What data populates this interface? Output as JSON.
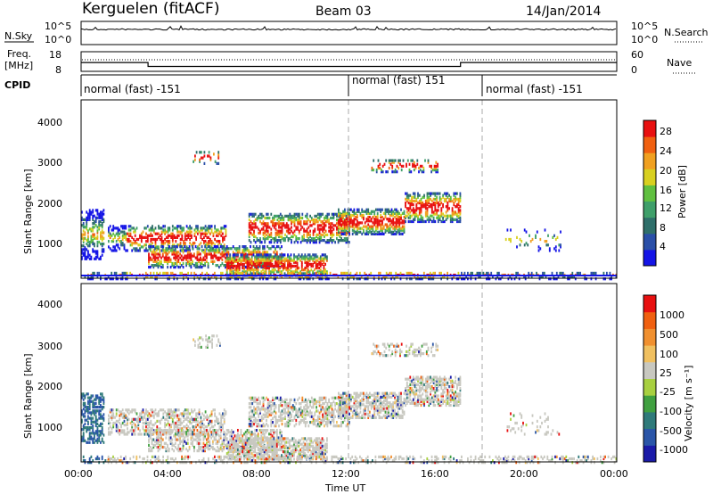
{
  "header": {
    "title": "Kerguelen (fitACF)",
    "beam": "Beam 03",
    "date": "14/Jan/2014"
  },
  "nsky": {
    "label": "N.Sky",
    "left_ticks": [
      "10^5",
      "10^0"
    ],
    "right_label": "N.Search",
    "right_ticks": [
      "10^5",
      "10^0"
    ]
  },
  "freq": {
    "label_line1": "Freq.",
    "label_line2": "[MHz]",
    "left_ticks": [
      "18",
      "8"
    ],
    "right_label": "Nave",
    "right_ticks": [
      "60",
      "0"
    ],
    "step_points": [
      [
        0,
        12.5
      ],
      [
        3,
        12.5
      ],
      [
        3,
        10.5
      ],
      [
        17,
        10.5
      ],
      [
        17,
        12.5
      ],
      [
        24,
        12.5
      ]
    ]
  },
  "cpid": {
    "label": "CPID",
    "segments": [
      {
        "start": 0,
        "end": 12,
        "label": "normal (fast) -151"
      },
      {
        "start": 12,
        "end": 18,
        "label": "normal (fast) 151"
      },
      {
        "start": 18,
        "end": 24,
        "label": "normal (fast) -151"
      }
    ]
  },
  "power_panel": {
    "ylabel": "Slant Range [km]",
    "yticks": [
      "4000",
      "3000",
      "2000",
      "1000"
    ],
    "colorbar_label": "Power [dB]",
    "colorbar_ticks": [
      "28",
      "24",
      "20",
      "16",
      "12",
      "8",
      "4"
    ],
    "colors": [
      "#1414e6",
      "#2a4fa8",
      "#2f6f6a",
      "#3f9f6a",
      "#60c040",
      "#d8d020",
      "#f0a020",
      "#f06010",
      "#e81010"
    ]
  },
  "velocity_panel": {
    "ylabel": "Slant Range [km]",
    "yticks": [
      "4000",
      "3000",
      "2000",
      "1000"
    ],
    "colorbar_label": "Velocity [m s⁻¹]",
    "colorbar_ticks": [
      "1000",
      "500",
      "100",
      "25",
      "-25",
      "-100",
      "-500",
      "-1000"
    ],
    "colors": [
      "#1a1aa8",
      "#2a55a8",
      "#2f7a7a",
      "#40a040",
      "#a8d040",
      "#c8c8c0",
      "#f0c060",
      "#f09030",
      "#f06010",
      "#e81010"
    ]
  },
  "xaxis": {
    "label": "Time UT",
    "ticks": [
      "00:00",
      "04:00",
      "08:00",
      "12:00",
      "16:00",
      "20:00",
      "00:00"
    ]
  },
  "chart_data": [
    {
      "type": "line",
      "name": "N.Sky",
      "x_range_hours": [
        0,
        24
      ],
      "description_values": "near-constant high count across the day"
    },
    {
      "type": "line",
      "name": "Freq.",
      "x": [
        0,
        3,
        3,
        17,
        17,
        24
      ],
      "y": [
        12.5,
        12.5,
        10.5,
        10.5,
        12.5,
        12.5
      ],
      "ylim": [
        8,
        18
      ]
    },
    {
      "type": "heatmap",
      "name": "Power",
      "x_range_hours": [
        0,
        24
      ],
      "y_range_km": [
        200,
        4500
      ],
      "cbar_range_db": [
        0,
        30
      ]
    },
    {
      "type": "heatmap",
      "name": "Velocity",
      "x_range_hours": [
        0,
        24
      ],
      "y_range_km": [
        200,
        4500
      ],
      "cbar_ticks": [
        1000,
        500,
        100,
        25,
        -25,
        -100,
        -500,
        -1000
      ]
    }
  ]
}
